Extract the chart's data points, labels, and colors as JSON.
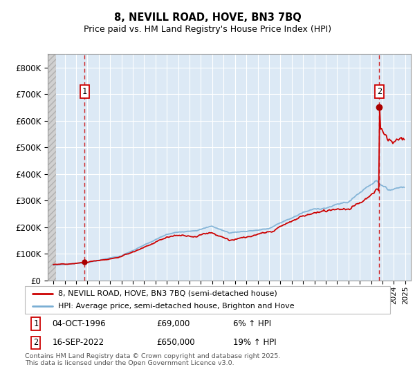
{
  "title": "8, NEVILL ROAD, HOVE, BN3 7BQ",
  "subtitle": "Price paid vs. HM Land Registry's House Price Index (HPI)",
  "ylim": [
    0,
    850000
  ],
  "yticks": [
    0,
    100000,
    200000,
    300000,
    400000,
    500000,
    600000,
    700000,
    800000
  ],
  "ytick_labels": [
    "£0",
    "£100K",
    "£200K",
    "£300K",
    "£400K",
    "£500K",
    "£600K",
    "£700K",
    "£800K"
  ],
  "background_color": "#ffffff",
  "plot_bg_color": "#dce9f5",
  "grid_color": "#ffffff",
  "sale1_year": 1996.75,
  "sale1_price": 69000,
  "sale2_year": 2022.71,
  "sale2_price": 650000,
  "red_line_color": "#cc0000",
  "blue_line_color": "#7bafd4",
  "marker_color": "#aa0000",
  "dashed_line_color": "#cc0000",
  "legend1": "8, NEVILL ROAD, HOVE, BN3 7BQ (semi-detached house)",
  "legend2": "HPI: Average price, semi-detached house, Brighton and Hove",
  "note1_date": "04-OCT-1996",
  "note1_price": "£69,000",
  "note1_hpi": "6% ↑ HPI",
  "note2_date": "16-SEP-2022",
  "note2_price": "£650,000",
  "note2_hpi": "19% ↑ HPI",
  "footer": "Contains HM Land Registry data © Crown copyright and database right 2025.\nThis data is licensed under the Open Government Licence v3.0.",
  "xmin": 1993.5,
  "xmax": 2025.5,
  "hatch_end": 1994.25
}
